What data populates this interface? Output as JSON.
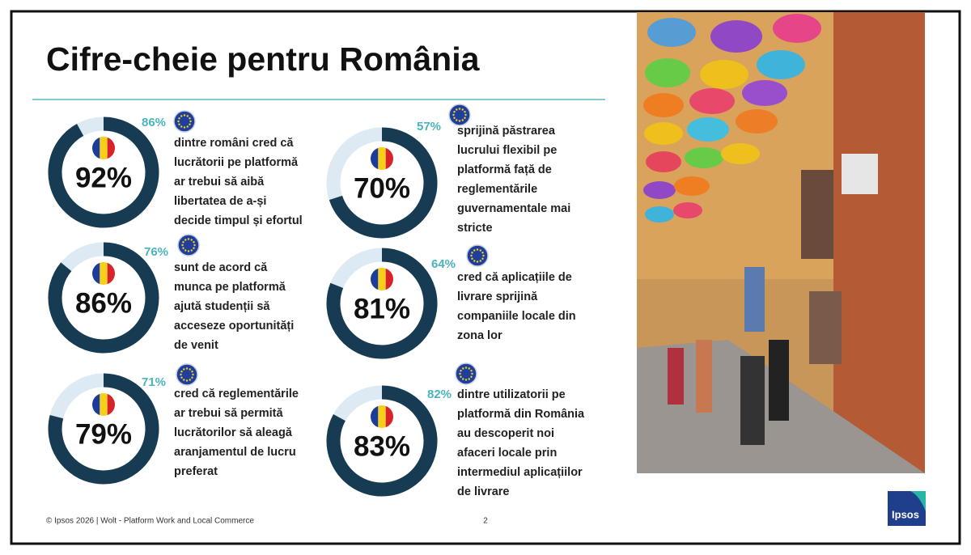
{
  "title": "Cifre-cheie pentru România",
  "items": [
    {
      "value": 92,
      "value_label": "92%",
      "eu_label": "86%",
      "text": [
        "dintre români cred că",
        "lucrătorii pe platformă",
        "ar trebui să aibă",
        "libertatea de a-și",
        "decide timpul și efortul"
      ]
    },
    {
      "value": 70,
      "value_label": "70%",
      "eu_label": "57%",
      "text": [
        "sprijină păstrarea",
        "lucrului flexibil pe",
        "platformă față de",
        "reglementările",
        "guvernamentale mai",
        "stricte"
      ]
    },
    {
      "value": 86,
      "value_label": "86%",
      "eu_label": "76%",
      "text": [
        "sunt de acord că",
        "munca pe platformă",
        "ajută studenții să",
        "acceseze oportunități",
        "de venit"
      ]
    },
    {
      "value": 81,
      "value_label": "81%",
      "eu_label": "64%",
      "text": [
        "cred că aplicațiile de",
        "livrare sprijină",
        "companiile locale din",
        "zona lor"
      ]
    },
    {
      "value": 79,
      "value_label": "79%",
      "eu_label": "71%",
      "text": [
        "cred că reglementările",
        "ar trebui să permită",
        "lucrătorilor să aleagă",
        "aranjamentul de lucru",
        "preferat"
      ]
    },
    {
      "value": 83,
      "value_label": "83%",
      "eu_label": "82%",
      "text": [
        "dintre utilizatorii pe",
        "platformă din România",
        "au descoperit noi",
        "afaceri locale prin",
        "intermediul aplicațiilor",
        "de livrare"
      ]
    }
  ],
  "footer": "© Ipsos 2026 | Wolt - Platform Work and Local Commerce",
  "page_number": "2",
  "logo": "Ipsos"
}
